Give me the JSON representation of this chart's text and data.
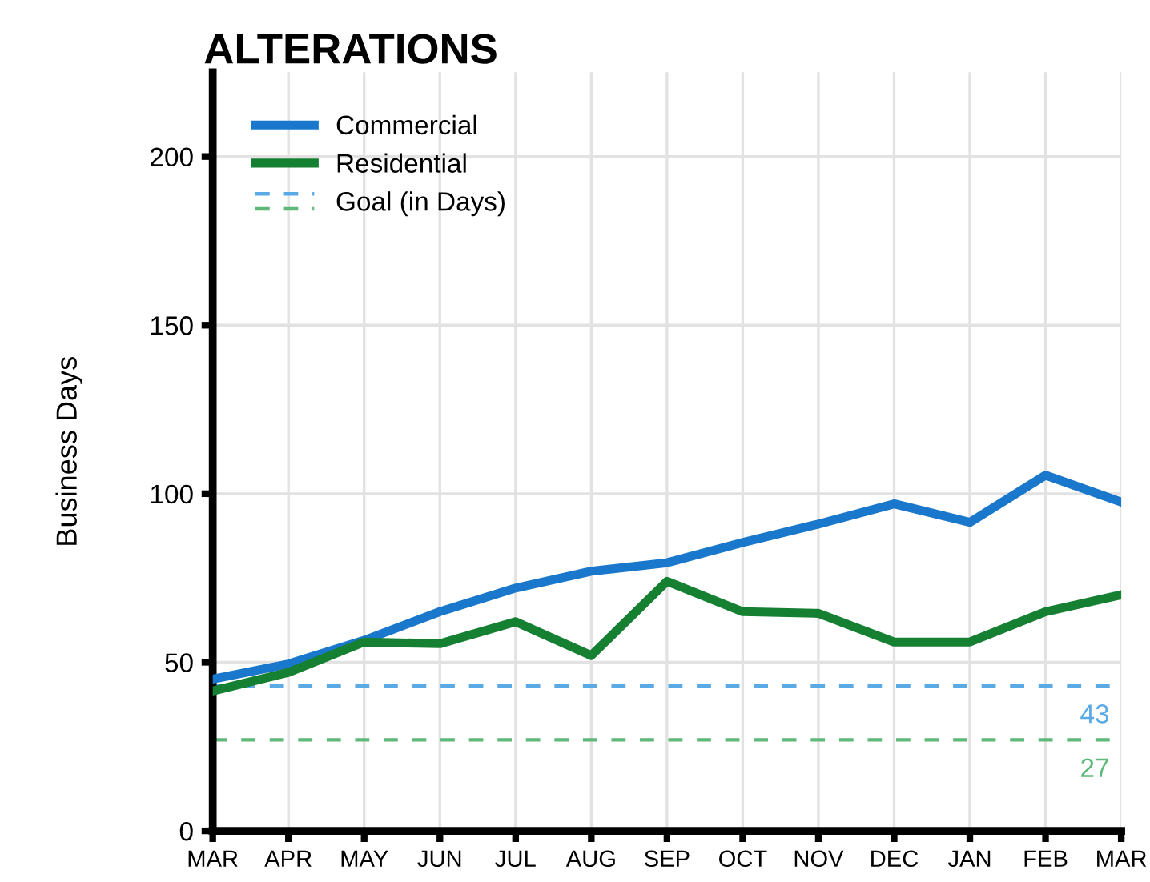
{
  "chart_data": {
    "type": "line",
    "title": "ALTERATIONS",
    "ylabel": "Business Days",
    "categories": [
      "MAR",
      "APR",
      "MAY",
      "JUN",
      "JUL",
      "AUG",
      "SEP",
      "OCT",
      "NOV",
      "DEC",
      "JAN",
      "FEB",
      "MAR"
    ],
    "series": [
      {
        "name": "Commercial",
        "color": "#1a78cc",
        "values": [
          45,
          49.5,
          56.5,
          65,
          72,
          77,
          79.5,
          85.5,
          91,
          97,
          91.5,
          105.5,
          97.5
        ]
      },
      {
        "name": "Residential",
        "color": "#157f32",
        "values": [
          41.5,
          47,
          56,
          55.5,
          62,
          52,
          74,
          65,
          64.5,
          56,
          56,
          65,
          70
        ]
      }
    ],
    "ref_lines": [
      {
        "axis": "y",
        "value": 43,
        "label": "43",
        "color": "#5aaae6",
        "line_style": "dashed"
      },
      {
        "axis": "y",
        "value": 27,
        "label": "27",
        "color": "#5db87a",
        "line_style": "dashed"
      }
    ],
    "annotations": [
      "Goal (in Days)"
    ],
    "ylim": [
      0,
      225
    ],
    "yticks": [
      0,
      50,
      100,
      150,
      200
    ],
    "grid": true,
    "legend": "top left",
    "marker": "none",
    "line_style": "solid"
  }
}
